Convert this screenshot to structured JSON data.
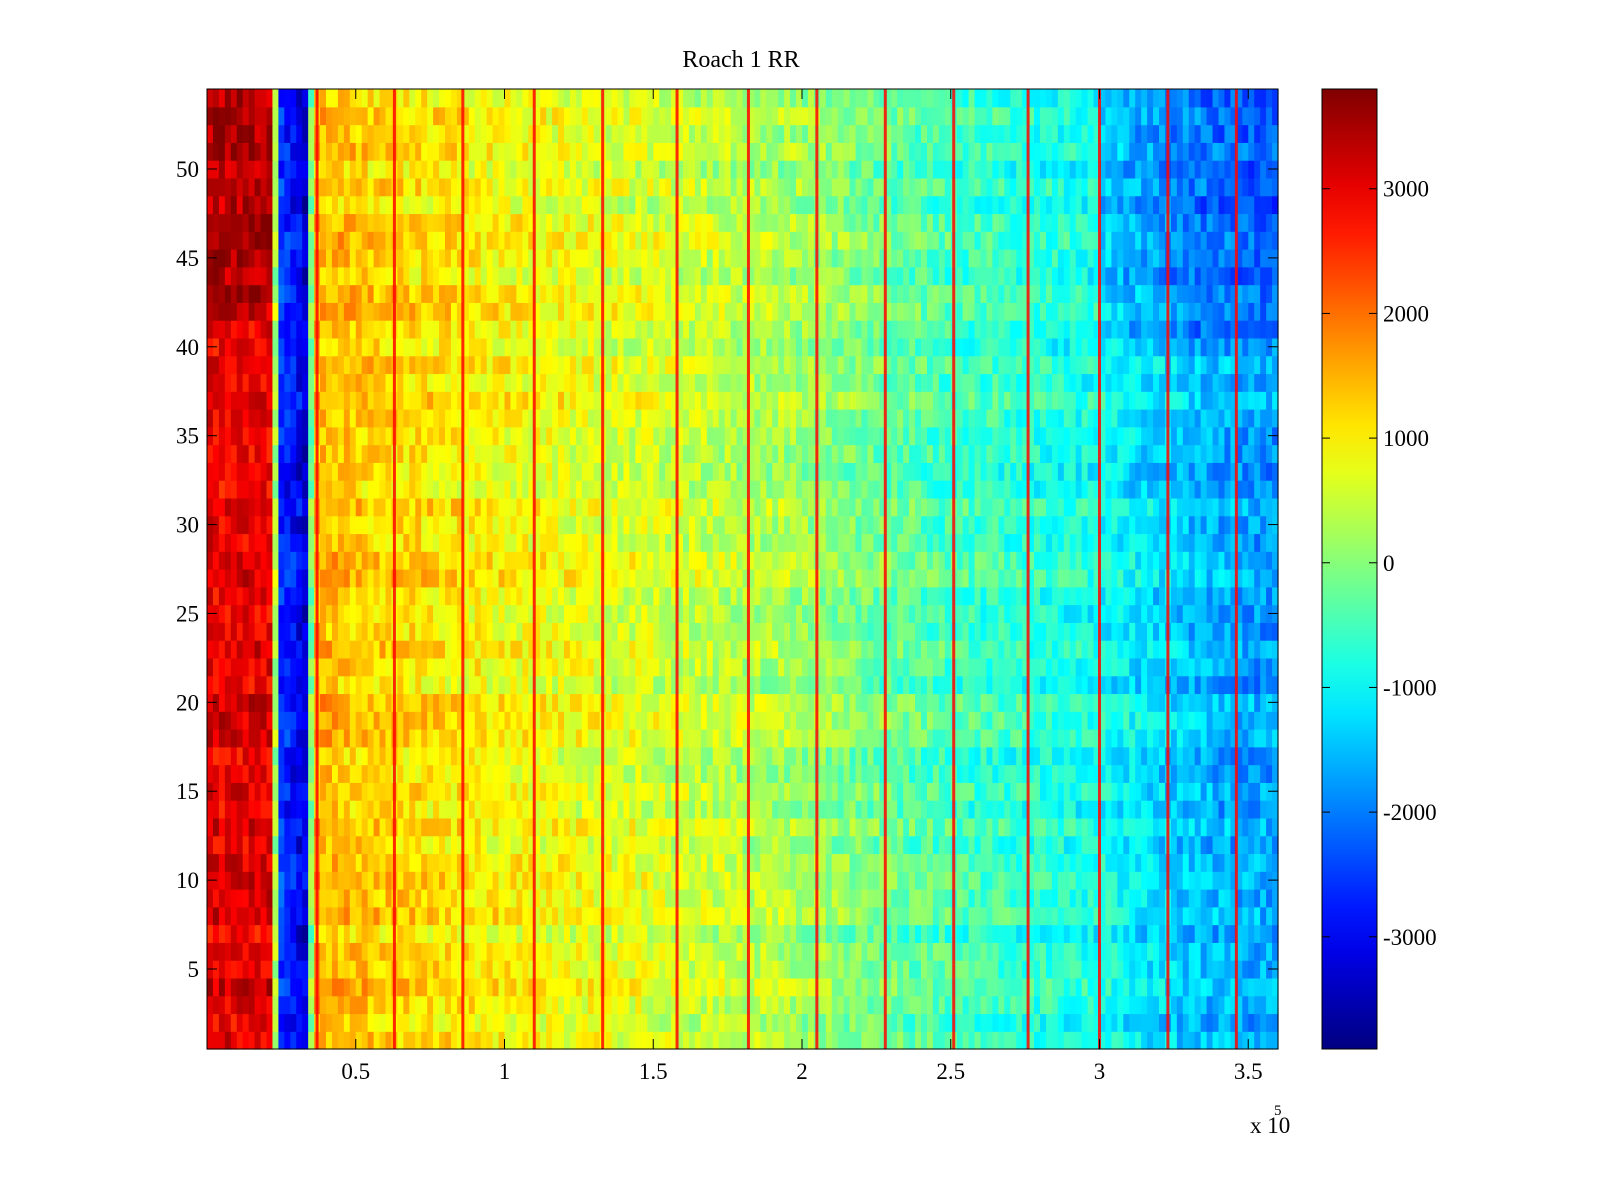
{
  "chart_data": {
    "type": "heatmap",
    "title": "Roach 1 RR",
    "xlabel": "",
    "ylabel": "",
    "x_exponent_label": {
      "prefix": "x 10",
      "exponent": "5"
    },
    "x_range": [
      0.0,
      3.6
    ],
    "y_range": [
      0.5,
      54.5
    ],
    "x_ticks": [
      0.5,
      1,
      1.5,
      2,
      2.5,
      3,
      3.5
    ],
    "x_tick_labels": [
      "0.5",
      "1",
      "1.5",
      "2",
      "2.5",
      "3",
      "3.5"
    ],
    "y_ticks": [
      5,
      10,
      15,
      20,
      25,
      30,
      35,
      40,
      45,
      50
    ],
    "y_tick_labels": [
      "5",
      "10",
      "15",
      "20",
      "25",
      "30",
      "35",
      "40",
      "45",
      "50"
    ],
    "rows": 54,
    "colormap": "jet",
    "color_range": [
      -3900,
      3800
    ],
    "colorbar": {
      "ticks": [
        3000,
        2000,
        1000,
        0,
        -1000,
        -2000,
        -3000
      ],
      "tick_labels": [
        "3000",
        "2000",
        "1000",
        "0",
        "-1000",
        "-2000",
        "-3000"
      ]
    },
    "trend_profile_x": [
      0.0,
      0.22,
      0.24,
      0.33,
      0.36,
      0.5,
      1.0,
      1.5,
      2.0,
      2.5,
      3.0,
      3.3,
      3.6
    ],
    "trend_profile_value": [
      3000,
      3000,
      -2500,
      -3200,
      1500,
      1300,
      900,
      600,
      200,
      -500,
      -900,
      -1500,
      -1800
    ],
    "stripe_x": [
      0.37,
      0.63,
      0.86,
      1.1,
      1.33,
      1.58,
      1.82,
      2.05,
      2.28,
      2.51,
      2.76,
      3.0,
      3.23,
      3.46
    ],
    "stripe_value": 2800
  }
}
